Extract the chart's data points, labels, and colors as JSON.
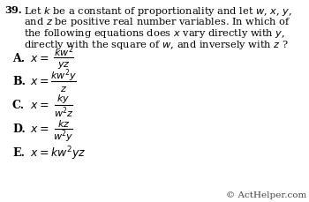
{
  "question_number": "39.",
  "question_text_lines": [
    "Let $k$ be a constant of proportionality and let $w$, $x$, $y$,",
    "and $z$ be positive real number variables. In which of",
    "the following equations does $x$ vary directly with $y$,",
    "directly with the square of $w$, and inversely with $z$ ?"
  ],
  "options": [
    {
      "label": "A.",
      "eq": "$x = $",
      "numerator": "$kw^2$",
      "denominator": "$yz$",
      "is_fraction": true
    },
    {
      "label": "B.",
      "eq": "$x = $",
      "numerator": "$kw^2y$",
      "denominator": "$z$",
      "is_fraction": true
    },
    {
      "label": "C.",
      "eq": "$x = $",
      "numerator": "$ky$",
      "denominator": "$w^2z$",
      "is_fraction": true
    },
    {
      "label": "D.",
      "eq": "$x = $",
      "numerator": "$kz$",
      "denominator": "$w^2y$",
      "is_fraction": true
    },
    {
      "label": "E.",
      "eq": "$x = kw^2yz$",
      "numerator": "",
      "denominator": "",
      "is_fraction": false
    }
  ],
  "copyright": "© ActHelper.com",
  "bg_color": "#ffffff",
  "text_color": "#000000",
  "fq": 8.2,
  "fo": 9.0,
  "fo_small": 8.0,
  "fc": 7.5
}
